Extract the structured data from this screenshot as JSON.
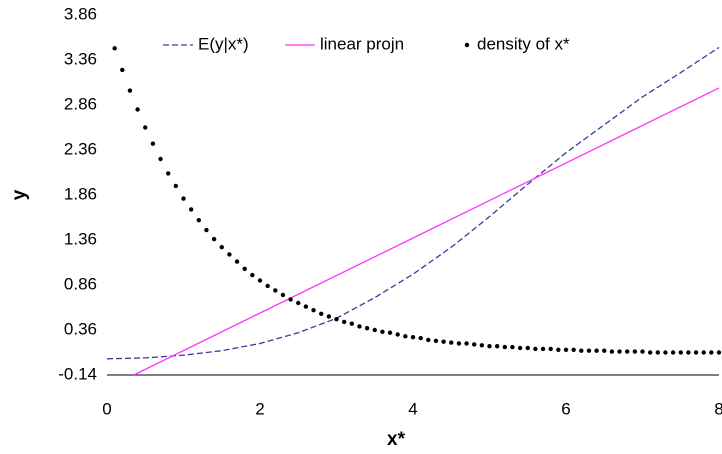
{
  "chart_data": {
    "type": "line",
    "x_label": "x*",
    "y_label": "y",
    "xlim": [
      0,
      8
    ],
    "xticks": [
      0,
      2,
      4,
      6,
      8
    ],
    "ylim": [
      -0.14,
      3.86
    ],
    "yticks": [
      -0.14,
      0.36,
      0.86,
      1.36,
      1.86,
      2.36,
      2.86,
      3.36,
      3.86
    ],
    "series": [
      {
        "name": "E(y|x*)",
        "color": "#3b3b9e",
        "style": "dashed",
        "x": [
          0,
          0.5,
          1,
          1.5,
          2,
          2.5,
          3,
          3.5,
          4,
          4.5,
          5,
          5.5,
          6,
          6.5,
          7,
          7.5,
          8
        ],
        "values": [
          0.04,
          0.05,
          0.08,
          0.13,
          0.21,
          0.33,
          0.49,
          0.72,
          0.98,
          1.28,
          1.62,
          1.98,
          2.33,
          2.64,
          2.95,
          3.22,
          3.5
        ]
      },
      {
        "name": "linear projn",
        "color": "#ff33ff",
        "style": "solid",
        "x": [
          0.35,
          8
        ],
        "values": [
          -0.14,
          3.05
        ]
      },
      {
        "name": "density of x*",
        "color": "#000000",
        "style": "dots",
        "x": [
          0.1,
          0.2,
          0.3,
          0.4,
          0.5,
          0.6,
          0.7,
          0.8,
          0.9,
          1.0,
          1.1,
          1.2,
          1.3,
          1.4,
          1.5,
          1.6,
          1.7,
          1.8,
          1.9,
          2.0,
          2.1,
          2.2,
          2.3,
          2.4,
          2.5,
          2.6,
          2.7,
          2.8,
          2.9,
          3.0,
          3.1,
          3.2,
          3.3,
          3.4,
          3.5,
          3.6,
          3.7,
          3.8,
          3.9,
          4.0,
          4.1,
          4.2,
          4.3,
          4.4,
          4.5,
          4.6,
          4.7,
          4.8,
          4.9,
          5.0,
          5.1,
          5.2,
          5.3,
          5.4,
          5.5,
          5.6,
          5.7,
          5.8,
          5.9,
          6.0,
          6.1,
          6.2,
          6.3,
          6.4,
          6.5,
          6.6,
          6.7,
          6.8,
          6.9,
          7.0,
          7.1,
          7.2,
          7.3,
          7.4,
          7.5,
          7.6,
          7.7,
          7.8,
          7.9,
          8.0
        ],
        "values": [
          3.49,
          3.25,
          3.02,
          2.81,
          2.61,
          2.43,
          2.26,
          2.1,
          1.96,
          1.82,
          1.7,
          1.58,
          1.47,
          1.37,
          1.28,
          1.2,
          1.12,
          1.04,
          0.97,
          0.91,
          0.85,
          0.8,
          0.75,
          0.7,
          0.66,
          0.62,
          0.58,
          0.54,
          0.51,
          0.48,
          0.45,
          0.43,
          0.4,
          0.38,
          0.36,
          0.34,
          0.33,
          0.31,
          0.29,
          0.28,
          0.27,
          0.25,
          0.24,
          0.23,
          0.22,
          0.21,
          0.21,
          0.2,
          0.19,
          0.18,
          0.18,
          0.17,
          0.17,
          0.16,
          0.16,
          0.15,
          0.15,
          0.15,
          0.14,
          0.14,
          0.14,
          0.13,
          0.13,
          0.13,
          0.13,
          0.12,
          0.12,
          0.12,
          0.12,
          0.12,
          0.11,
          0.11,
          0.11,
          0.11,
          0.11,
          0.11,
          0.11,
          0.11,
          0.11,
          0.11
        ]
      }
    ]
  }
}
